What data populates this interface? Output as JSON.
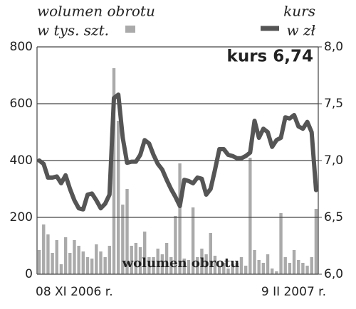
{
  "chart_data": {
    "type": "bar-line",
    "annotations": [
      "kurs 6,74",
      "wolumen obrotu"
    ],
    "ylabel": "w tys. szt.",
    "y2label": "w zł",
    "categories": [
      "08 XI 2006 r.",
      null,
      null,
      null,
      null,
      null,
      null,
      null,
      null,
      null,
      null,
      null,
      null,
      null,
      null,
      null,
      null,
      null,
      null,
      null,
      null,
      null,
      null,
      null,
      null,
      null,
      null,
      null,
      null,
      null,
      null,
      null,
      null,
      null,
      null,
      null,
      null,
      null,
      null,
      null,
      null,
      null,
      null,
      null,
      null,
      null,
      null,
      null,
      null,
      null,
      null,
      null,
      null,
      null,
      null,
      null,
      null,
      null,
      null,
      null,
      null,
      null,
      null,
      "9 II 2007 r."
    ],
    "series": [
      {
        "name": "wolumen obrotu",
        "type": "bar",
        "color": "#aaaaaa",
        "values": [
          85,
          175,
          140,
          75,
          120,
          35,
          130,
          75,
          120,
          100,
          80,
          60,
          55,
          105,
          80,
          60,
          100,
          725,
          540,
          245,
          300,
          100,
          110,
          95,
          150,
          60,
          60,
          90,
          70,
          110,
          60,
          205,
          390,
          55,
          50,
          235,
          60,
          90,
          70,
          145,
          65,
          30,
          40,
          20,
          35,
          40,
          60,
          30,
          410,
          85,
          50,
          40,
          70,
          20,
          10,
          215,
          60,
          40,
          85,
          50,
          40,
          30,
          60,
          230
        ]
      },
      {
        "name": "kurs",
        "type": "line",
        "axis": "y2",
        "color": "#555555",
        "values": [
          7.0,
          6.97,
          6.85,
          6.85,
          6.86,
          6.8,
          6.87,
          6.75,
          6.65,
          6.58,
          6.57,
          6.7,
          6.71,
          6.65,
          6.58,
          6.62,
          6.7,
          7.55,
          7.58,
          7.2,
          6.98,
          6.99,
          6.99,
          7.05,
          7.18,
          7.15,
          7.05,
          6.97,
          6.92,
          6.83,
          6.75,
          6.68,
          6.6,
          6.83,
          6.82,
          6.8,
          6.85,
          6.84,
          6.7,
          6.75,
          6.92,
          7.1,
          7.1,
          7.05,
          7.04,
          7.02,
          7.02,
          7.04,
          7.07,
          7.35,
          7.2,
          7.28,
          7.25,
          7.12,
          7.18,
          7.2,
          7.38,
          7.37,
          7.4,
          7.3,
          7.28,
          7.34,
          7.25,
          6.74
        ]
      }
    ],
    "ylim": [
      0,
      800
    ],
    "yticks": [
      0,
      200,
      400,
      600,
      800
    ],
    "y2lim": [
      6.0,
      8.0
    ],
    "y2ticks": [
      {
        "value": 6.0,
        "label": "6,0"
      },
      {
        "value": 6.5,
        "label": "6,5"
      },
      {
        "value": 7.0,
        "label": "7,0"
      },
      {
        "value": 7.5,
        "label": "7,5"
      },
      {
        "value": 8.0,
        "label": "8,0"
      }
    ],
    "grid": true
  }
}
